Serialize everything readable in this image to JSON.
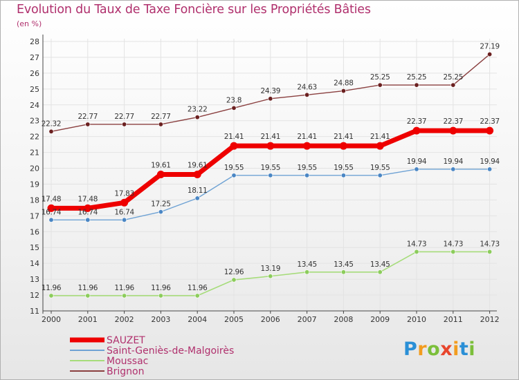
{
  "title": "Evolution du Taux de Taxe Foncière sur les Propriétés Bâties",
  "subtitle": "(en %)",
  "logo": {
    "text": "Proxiti",
    "colors": [
      "#2a8fd6",
      "#f29c1f",
      "#7bbf3a",
      "#e8452c"
    ]
  },
  "chart_data": {
    "type": "line",
    "x": [
      "2000",
      "2001",
      "2002",
      "2003",
      "2004",
      "2005",
      "2006",
      "2007",
      "2008",
      "2009",
      "2010",
      "2011",
      "2012"
    ],
    "ylim": [
      11,
      28
    ],
    "yticks": [
      "11",
      "12",
      "13",
      "14",
      "15",
      "16",
      "17",
      "18",
      "19",
      "20",
      "21",
      "22",
      "23",
      "24",
      "25",
      "26",
      "27",
      "28"
    ],
    "grid": true,
    "legend_position": "bottom-left",
    "series": [
      {
        "name": "SAUZET",
        "color": "#ee0000",
        "values": [
          17.48,
          17.48,
          17.83,
          19.61,
          19.61,
          21.41,
          21.41,
          21.41,
          21.41,
          21.41,
          22.37,
          22.37,
          22.37
        ],
        "labels": [
          "17.48",
          "17.48",
          "17.83",
          "19.61",
          "19.61",
          "21.41",
          "21.41",
          "21.41",
          "21.41",
          "21.41",
          "22.37",
          "22.37",
          "22.37"
        ]
      },
      {
        "name": "Saint-Geniès-de-Malgoirès",
        "color": "#6ea2d4",
        "values": [
          16.74,
          16.74,
          16.74,
          17.25,
          18.11,
          19.55,
          19.55,
          19.55,
          19.55,
          19.55,
          19.94,
          19.94,
          19.94
        ],
        "labels": [
          "16.74",
          "16.74",
          "16.74",
          "17.25",
          "18.11",
          "19.55",
          "19.55",
          "19.55",
          "19.55",
          "19.55",
          "19.94",
          "19.94",
          "19.94"
        ]
      },
      {
        "name": "Moussac",
        "color": "#a6dc7a",
        "values": [
          11.96,
          11.96,
          11.96,
          11.96,
          11.96,
          12.96,
          13.19,
          13.45,
          13.45,
          13.45,
          14.73,
          14.73,
          14.73
        ],
        "labels": [
          "11.96",
          "11.96",
          "11.96",
          "11.96",
          "11.96",
          "12.96",
          "13.19",
          "13.45",
          "13.45",
          "13.45",
          "14.73",
          "14.73",
          "14.73"
        ]
      },
      {
        "name": "Brignon",
        "color": "#8a3f3f",
        "values": [
          22.32,
          22.77,
          22.77,
          22.77,
          23.22,
          23.8,
          24.39,
          24.63,
          24.88,
          25.25,
          25.25,
          25.25,
          27.19
        ],
        "labels": [
          "22.32",
          "22.77",
          "22.77",
          "22.77",
          "23.22",
          "23.8",
          "24.39",
          "24.63",
          "24.88",
          "25.25",
          "25.25",
          "25.25",
          "27.19"
        ]
      }
    ]
  }
}
